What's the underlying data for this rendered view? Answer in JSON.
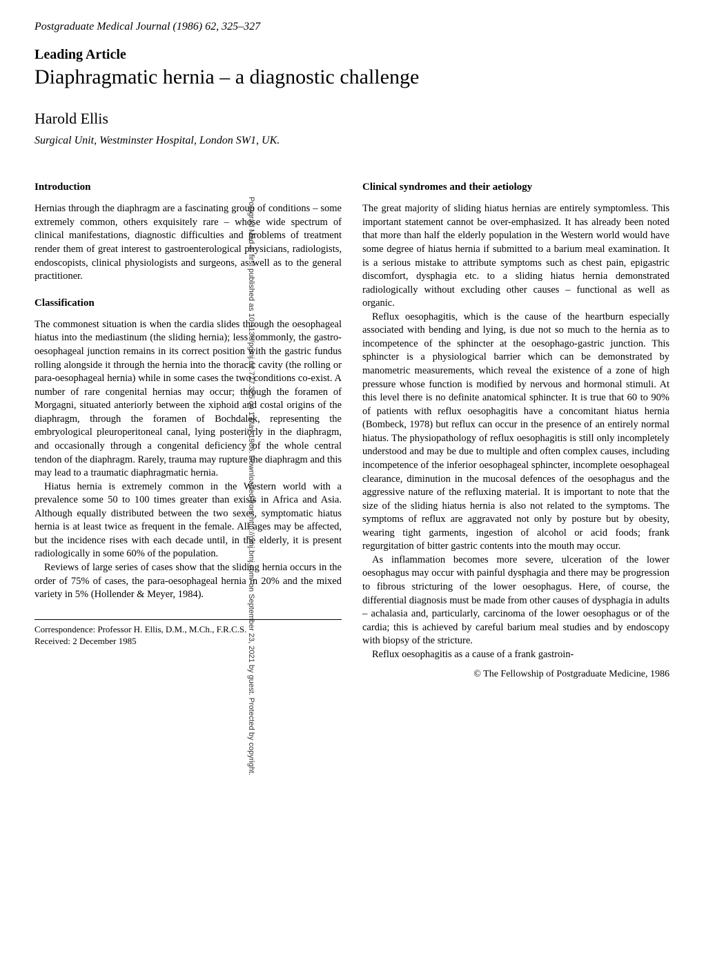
{
  "header": {
    "journal": "Postgraduate Medical Journal (1986) 62, 325–327"
  },
  "article": {
    "type": "Leading Article",
    "title": "Diaphragmatic hernia – a diagnostic challenge",
    "author": "Harold Ellis",
    "affiliation": "Surgical Unit, Westminster Hospital, London SW1, UK."
  },
  "left_column": {
    "intro_heading": "Introduction",
    "intro_text": "Hernias through the diaphragm are a fascinating group of conditions – some extremely common, others exquisitely rare – whose wide spectrum of clinical manifestations, diagnostic difficulties and problems of treatment render them of great interest to gastroenterological physicians, radiologists, endoscopists, clinical physiologists and surgeons, as well as to the general practitioner.",
    "classification_heading": "Classification",
    "classification_p1": "The commonest situation is when the cardia slides through the oesophageal hiatus into the mediastinum (the sliding hernia); less commonly, the gastro-oesophageal junction remains in its correct position with the gastric fundus rolling alongside it through the hernia into the thoracic cavity (the rolling or para-oesophageal hernia) while in some cases the two conditions co-exist. A number of rare congenital hernias may occur; through the foramen of Morgagni, situated anteriorly between the xiphoid and costal origins of the diaphragm, through the foramen of Bochdalek, representing the embryological pleuroperitoneal canal, lying posteriorly in the diaphragm, and occasionally through a congenital deficiency of the whole central tendon of the diaphragm. Rarely, trauma may rupture the diaphragm and this may lead to a traumatic diaphragmatic hernia.",
    "classification_p2": "Hiatus hernia is extremely common in the Western world with a prevalence some 50 to 100 times greater than exists in Africa and Asia. Although equally distributed between the two sexes, symptomatic hiatus hernia is at least twice as frequent in the female. All ages may be affected, but the incidence rises with each decade until, in the elderly, it is present radiologically in some 60% of the population.",
    "classification_p3": "Reviews of large series of cases show that the sliding hernia occurs in the order of 75% of cases, the para-oesophageal hernia in 20% and the mixed variety in 5% (Hollender & Meyer, 1984).",
    "correspondence_line1": "Correspondence: Professor H. Ellis, D.M., M.Ch., F.R.C.S.",
    "correspondence_line2": "Received: 2 December 1985"
  },
  "right_column": {
    "clinical_heading": "Clinical syndromes and their aetiology",
    "clinical_p1": "The great majority of sliding hiatus hernias are entirely symptomless. This important statement cannot be over-emphasized. It has already been noted that more than half the elderly population in the Western world would have some degree of hiatus hernia if submitted to a barium meal examination. It is a serious mistake to attribute symptoms such as chest pain, epigastric discomfort, dysphagia etc. to a sliding hiatus hernia demonstrated radiologically without excluding other causes – functional as well as organic.",
    "clinical_p2": "Reflux oesophagitis, which is the cause of the heartburn especially associated with bending and lying, is due not so much to the hernia as to incompetence of the sphincter at the oesophago-gastric junction. This sphincter is a physiological barrier which can be demonstrated by manometric measurements, which reveal the existence of a zone of high pressure whose function is modified by nervous and hormonal stimuli. At this level there is no definite anatomical sphincter. It is true that 60 to 90% of patients with reflux oesophagitis have a concomitant hiatus hernia (Bombeck, 1978) but reflux can occur in the presence of an entirely normal hiatus. The physiopathology of reflux oesophagitis is still only incompletely understood and may be due to multiple and often complex causes, including incompetence of the inferior oesophageal sphincter, incomplete oesophageal clearance, diminution in the mucosal defences of the oesophagus and the aggressive nature of the refluxing material. It is important to note that the size of the sliding hiatus hernia is also not related to the symptoms. The symptoms of reflux are aggravated not only by posture but by obesity, wearing tight garments, ingestion of alcohol or acid foods; frank regurgitation of bitter gastric contents into the mouth may occur.",
    "clinical_p3": "As inflammation becomes more severe, ulceration of the lower oesophagus may occur with painful dysphagia and there may be progression to fibrous stricturing of the lower oesophagus. Here, of course, the differential diagnosis must be made from other causes of dysphagia in adults – achalasia and, particularly, carcinoma of the lower oesophagus or of the cardia; this is achieved by careful barium meal studies and by endoscopy with biopsy of the stricture.",
    "clinical_p4": "Reflux oesophagitis as a cause of a frank gastroin-",
    "copyright": "© The Fellowship of Postgraduate Medicine, 1986"
  },
  "sidebar": {
    "text": "Postgrad Med J: first published as 10.1136/pgmj.62.727.325 on 1 May 1986. Downloaded from http://pmj.bmj.com/ on September 23, 2021 by guest. Protected by copyright."
  }
}
